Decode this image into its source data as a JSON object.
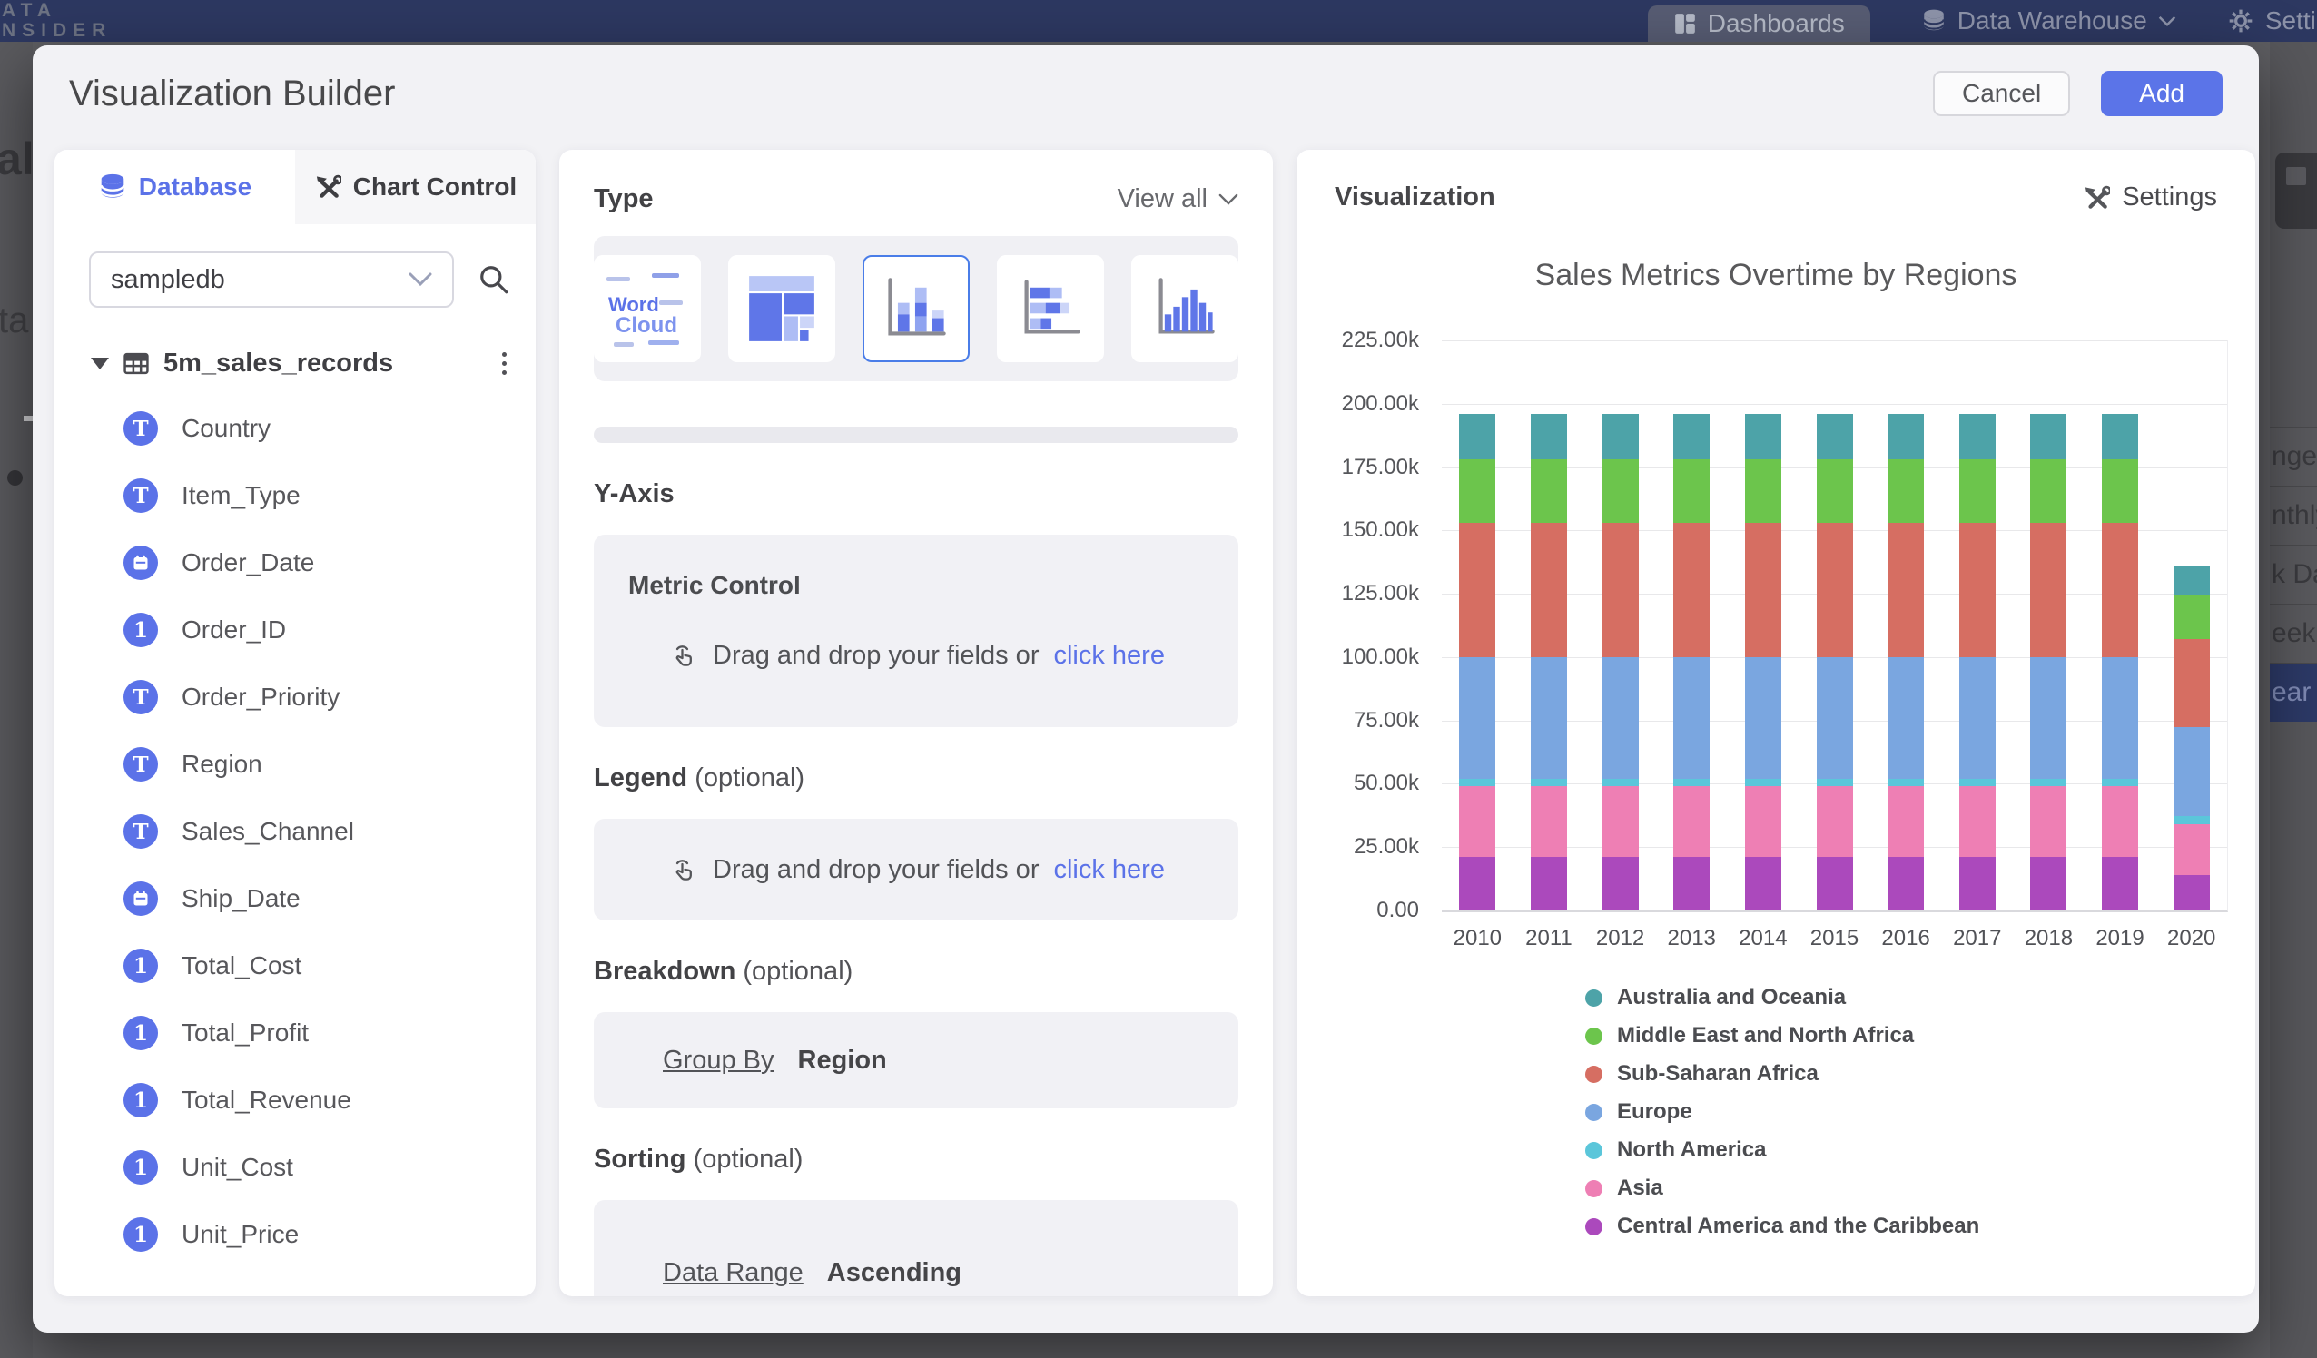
{
  "topbar": {
    "logo_line1": "ATA",
    "logo_line2": "NSIDER",
    "nav_dashboards": "Dashboards",
    "nav_data_warehouse": "Data Warehouse",
    "nav_settings": "Settings"
  },
  "background": {
    "left_fragments": {
      "frag1": "al",
      "frag2": "ta"
    },
    "right_menu": {
      "items": [
        "nge",
        "nthly",
        "k Date",
        "eekly",
        "ear"
      ],
      "active_index": 4,
      "active_bg": "#2c3966"
    }
  },
  "modal": {
    "title": "Visualization Builder",
    "cancel_label": "Cancel",
    "add_label": "Add"
  },
  "left_panel": {
    "tabs": [
      {
        "label": "Database",
        "active": true
      },
      {
        "label": "Chart Control",
        "active": false
      }
    ],
    "database_select": {
      "value": "sampledb"
    },
    "table_name": "5m_sales_records",
    "fields": [
      {
        "name": "Country",
        "type": "text"
      },
      {
        "name": "Item_Type",
        "type": "text"
      },
      {
        "name": "Order_Date",
        "type": "date"
      },
      {
        "name": "Order_ID",
        "type": "number"
      },
      {
        "name": "Order_Priority",
        "type": "text"
      },
      {
        "name": "Region",
        "type": "text"
      },
      {
        "name": "Sales_Channel",
        "type": "text"
      },
      {
        "name": "Ship_Date",
        "type": "date"
      },
      {
        "name": "Total_Cost",
        "type": "number"
      },
      {
        "name": "Total_Profit",
        "type": "number"
      },
      {
        "name": "Total_Revenue",
        "type": "number"
      },
      {
        "name": "Unit_Cost",
        "type": "number"
      },
      {
        "name": "Unit_Price",
        "type": "number"
      }
    ]
  },
  "builder_panel": {
    "type_label": "Type",
    "view_all_label": "View all",
    "selected_chart_type": "stacked-column",
    "word_cloud_card": {
      "line1": "Word",
      "line2": "Cloud"
    },
    "y_axis_label": "Y-Axis",
    "metric_control": {
      "title": "Metric Control",
      "drop_text": "Drag and drop your fields or",
      "link_label": "click here"
    },
    "legend_section": {
      "title": "Legend",
      "suffix": "(optional)",
      "drop_text": "Drag and drop your fields or",
      "link_label": "click here"
    },
    "breakdown_section": {
      "title": "Breakdown",
      "suffix": "(optional)",
      "group_by_label": "Group By",
      "group_by_value": "Region"
    },
    "sorting_section": {
      "title": "Sorting",
      "suffix": "(optional)",
      "sort_label": "Data Range",
      "sort_value": "Ascending"
    }
  },
  "viz_panel": {
    "header": "Visualization",
    "settings_label": "Settings"
  },
  "chart_data": {
    "type": "bar",
    "stacked": true,
    "title": "Sales Metrics Overtime by Regions",
    "categories": [
      "2010",
      "2011",
      "2012",
      "2013",
      "2014",
      "2015",
      "2016",
      "2017",
      "2018",
      "2019",
      "2020"
    ],
    "series": [
      {
        "name": "Australia and Oceania",
        "color": "#4da3a8",
        "values": [
          18000,
          18000,
          18000,
          18000,
          18000,
          18000,
          18000,
          18000,
          18000,
          18000,
          11500
        ]
      },
      {
        "name": "Middle East and North Africa",
        "color": "#6cc54c",
        "values": [
          25000,
          25000,
          25000,
          25000,
          25000,
          25000,
          25000,
          25000,
          25000,
          25000,
          17000
        ]
      },
      {
        "name": "Sub-Saharan Africa",
        "color": "#d66e62",
        "values": [
          53000,
          53000,
          53000,
          53000,
          53000,
          53000,
          53000,
          53000,
          53000,
          53000,
          35000
        ]
      },
      {
        "name": "Europe",
        "color": "#7aa6e0",
        "values": [
          48000,
          48000,
          48000,
          48000,
          48000,
          48000,
          48000,
          48000,
          48000,
          48000,
          35000
        ]
      },
      {
        "name": "North America",
        "color": "#5bc6da",
        "values": [
          3000,
          3000,
          3000,
          3000,
          3000,
          3000,
          3000,
          3000,
          3000,
          3000,
          3300
        ]
      },
      {
        "name": "Asia",
        "color": "#ee7fb4",
        "values": [
          28000,
          28000,
          28000,
          28000,
          28000,
          28000,
          28000,
          28000,
          28000,
          28000,
          20000
        ]
      },
      {
        "name": "Central America and the Caribbean",
        "color": "#ab49bc",
        "values": [
          21000,
          21000,
          21000,
          21000,
          21000,
          21000,
          21000,
          21000,
          21000,
          21000,
          14000
        ]
      }
    ],
    "stack_order": "series listed top-of-stack first; last series sits at the bottom of each bar",
    "y_ticks": [
      "0.00",
      "25.00k",
      "50.00k",
      "75.00k",
      "100.00k",
      "125.00k",
      "150.00k",
      "175.00k",
      "200.00k",
      "225.00k"
    ],
    "ylim": [
      0,
      225000
    ],
    "grid": true,
    "legend_position": "bottom-left",
    "accent_color": "#5b74e8"
  }
}
